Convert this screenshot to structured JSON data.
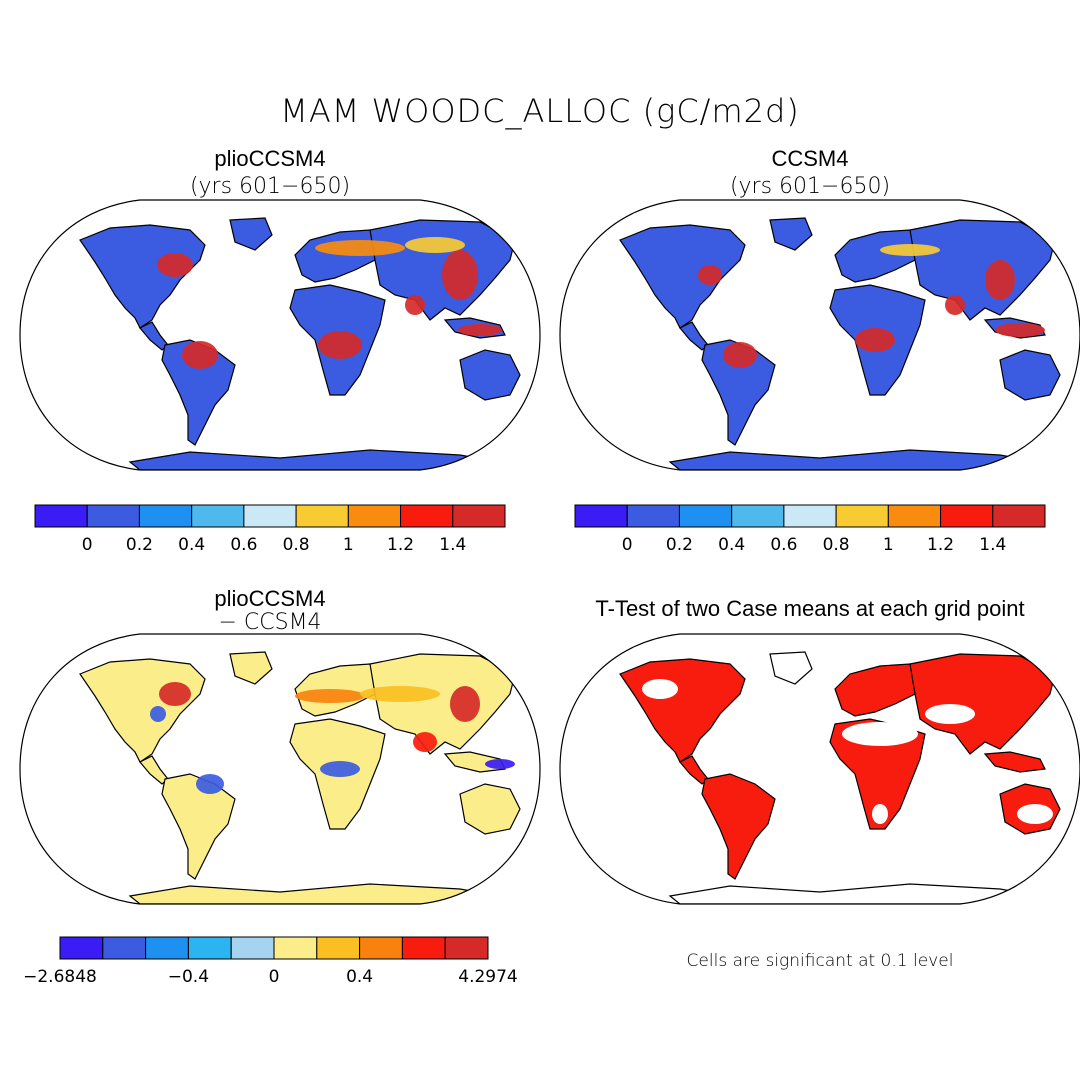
{
  "title": "MAM WOODC_ALLOC (gC/m2d)",
  "panels": [
    {
      "title": "plioCCSM4",
      "subtitle": "(yrs 601−650)"
    },
    {
      "title": "CCSM4",
      "subtitle": "(yrs 601−650)"
    },
    {
      "title": "plioCCSM4",
      "subtitle": "− CCSM4"
    },
    {
      "title": "T-Test of two Case means at each grid point",
      "subtitle": ""
    }
  ],
  "colorbar_abs": {
    "colors": [
      "#3a1cf5",
      "#3b5ce0",
      "#1e90f0",
      "#4fb8ec",
      "#cbe8f6",
      "#f8cb33",
      "#f98c0e",
      "#f81c0e",
      "#d52a28"
    ],
    "labels": [
      "0",
      "0.2",
      "0.4",
      "0.6",
      "0.8",
      "1",
      "1.2",
      "1.4"
    ]
  },
  "colorbar_diff": {
    "colors": [
      "#3a1cf5",
      "#3b5ce0",
      "#1e90f0",
      "#2bb4f0",
      "#a5d3f0",
      "#fbee8a",
      "#fbbf22",
      "#f9820e",
      "#f81c0e",
      "#d52a28"
    ],
    "labels": [
      "−2.6848",
      "−0.4",
      "0",
      "0.4",
      "4.2974"
    ]
  },
  "significance_note": "Cells are significant at 0.1 level",
  "legend_colors": {
    "land_abs": "#3b5ce0",
    "land_diff": "#fbee8a",
    "significant": "#f81c0e"
  }
}
